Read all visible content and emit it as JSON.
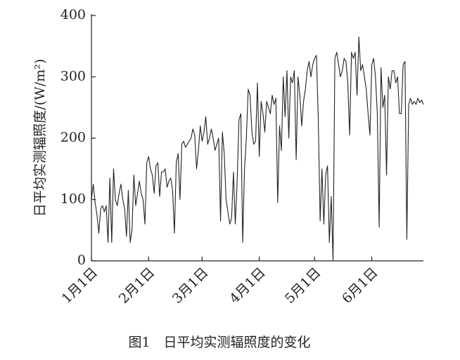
{
  "chart_data": {
    "type": "line",
    "caption": "图1　日平均实测辐照度的变化",
    "y_label": "日平均实测辐照度/(W/m²)",
    "color": "#222222",
    "x": [
      0,
      1,
      2,
      3,
      4,
      5,
      6,
      7,
      8,
      9,
      10,
      11,
      12,
      13,
      14,
      15,
      16,
      17,
      18,
      19,
      20,
      21,
      22,
      23,
      24,
      25,
      26,
      27,
      28,
      29,
      30,
      31,
      32,
      33,
      34,
      35,
      36,
      37,
      38,
      39,
      40,
      41,
      42,
      43,
      44,
      45,
      46,
      47,
      48,
      49,
      50,
      51,
      52,
      53,
      54,
      55,
      56,
      57,
      58,
      59,
      60,
      61,
      62,
      63,
      64,
      65,
      66,
      67,
      68,
      69,
      70,
      71,
      72,
      73,
      74,
      75,
      76,
      77,
      78,
      79,
      80,
      81,
      82,
      83,
      84,
      85,
      86,
      87,
      88,
      89,
      90,
      91,
      92,
      93,
      94,
      95,
      96,
      97,
      98,
      99,
      100,
      101,
      102,
      103,
      104,
      105,
      106,
      107,
      108,
      109,
      110,
      111,
      112,
      113,
      114,
      115,
      116,
      117,
      118,
      119,
      120,
      121,
      122,
      123,
      124,
      125,
      126,
      127,
      128,
      129,
      130,
      131,
      132,
      133,
      134,
      135,
      136,
      137,
      138,
      139,
      140,
      141,
      142,
      143,
      144,
      145,
      146,
      147,
      148,
      149,
      150,
      151,
      152,
      153,
      154,
      155,
      156,
      157,
      158,
      159,
      160,
      161,
      162,
      163,
      164,
      165,
      166,
      167,
      168,
      169,
      170,
      171,
      172,
      173,
      174,
      175,
      176,
      177,
      178,
      179,
      180
    ],
    "values": [
      100,
      125,
      95,
      75,
      45,
      85,
      90,
      80,
      90,
      30,
      135,
      30,
      150,
      100,
      90,
      110,
      125,
      100,
      85,
      40,
      115,
      30,
      50,
      140,
      90,
      110,
      130,
      110,
      100,
      60,
      160,
      170,
      150,
      140,
      110,
      155,
      160,
      105,
      145,
      145,
      150,
      120,
      130,
      135,
      115,
      45,
      160,
      175,
      100,
      190,
      195,
      185,
      190,
      195,
      200,
      215,
      205,
      150,
      180,
      220,
      195,
      210,
      235,
      190,
      200,
      215,
      200,
      180,
      190,
      200,
      65,
      210,
      175,
      100,
      80,
      60,
      70,
      145,
      60,
      130,
      230,
      240,
      30,
      150,
      200,
      280,
      270,
      210,
      190,
      195,
      290,
      170,
      260,
      240,
      210,
      260,
      250,
      240,
      270,
      255,
      265,
      95,
      220,
      180,
      300,
      235,
      310,
      200,
      300,
      290,
      310,
      165,
      300,
      270,
      220,
      260,
      280,
      310,
      325,
      300,
      320,
      330,
      335,
      230,
      65,
      150,
      60,
      140,
      155,
      30,
      105,
      0,
      330,
      340,
      320,
      300,
      310,
      330,
      325,
      290,
      205,
      340,
      330,
      340,
      270,
      365,
      310,
      320,
      300,
      280,
      240,
      205,
      320,
      330,
      300,
      240,
      55,
      315,
      250,
      270,
      140,
      300,
      280,
      310,
      310,
      290,
      300,
      240,
      240,
      320,
      325,
      35,
      255,
      265,
      255,
      260,
      255,
      265,
      258,
      262,
      255
    ],
    "xlim": [
      0,
      180
    ],
    "xticks": [
      {
        "value": 0,
        "label": "1月1日"
      },
      {
        "value": 31,
        "label": "2月1日"
      },
      {
        "value": 60,
        "label": "3月1日"
      },
      {
        "value": 91,
        "label": "4月1日"
      },
      {
        "value": 121,
        "label": "5月1日"
      },
      {
        "value": 152,
        "label": "6月1日"
      }
    ],
    "ylim": [
      0,
      400
    ],
    "yticks": [
      0,
      100,
      200,
      300,
      400
    ],
    "grid": false
  }
}
